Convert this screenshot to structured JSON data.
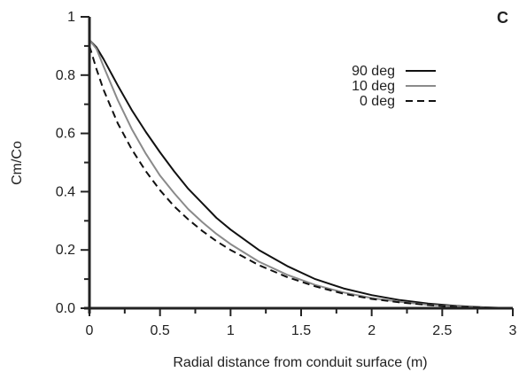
{
  "chart_data": {
    "type": "line",
    "panel_label": "C",
    "xlabel": "Radial distance from conduit surface (m)",
    "ylabel": "Cm/Co",
    "xlim": [
      0,
      3
    ],
    "ylim": [
      0,
      1
    ],
    "xticks": [
      0,
      0.5,
      1,
      1.5,
      2,
      2.5,
      3
    ],
    "xtick_labels": [
      "0",
      "0.5",
      "1",
      "1.5",
      "2",
      "2.5",
      "3"
    ],
    "yticks": [
      0,
      0.2,
      0.4,
      0.6,
      0.8,
      1
    ],
    "ytick_labels": [
      "0.0",
      "0.2",
      "0.4",
      "0.6",
      "0.8",
      "1"
    ],
    "grid": false,
    "legend": "top-right",
    "series": [
      {
        "name": "90 deg",
        "color": "#111111",
        "dash": "solid",
        "x": [
          0,
          0.05,
          0.1,
          0.2,
          0.3,
          0.4,
          0.5,
          0.6,
          0.7,
          0.8,
          0.9,
          1.0,
          1.2,
          1.4,
          1.6,
          1.8,
          2.0,
          2.2,
          2.4,
          2.6,
          2.8,
          3.0
        ],
        "y": [
          0.92,
          0.895,
          0.855,
          0.765,
          0.68,
          0.605,
          0.535,
          0.47,
          0.41,
          0.36,
          0.31,
          0.27,
          0.2,
          0.145,
          0.1,
          0.068,
          0.045,
          0.028,
          0.016,
          0.008,
          0.003,
          0
        ]
      },
      {
        "name": "10 deg",
        "color": "#8a8a8a",
        "dash": "solid",
        "x": [
          0,
          0.05,
          0.1,
          0.2,
          0.3,
          0.4,
          0.5,
          0.6,
          0.7,
          0.8,
          0.9,
          1.0,
          1.2,
          1.4,
          1.6,
          1.8,
          2.0,
          2.2,
          2.4,
          2.6,
          2.8,
          3.0
        ],
        "y": [
          0.92,
          0.89,
          0.83,
          0.715,
          0.615,
          0.53,
          0.455,
          0.395,
          0.34,
          0.295,
          0.255,
          0.22,
          0.16,
          0.115,
          0.08,
          0.054,
          0.035,
          0.022,
          0.012,
          0.006,
          0.002,
          0
        ]
      },
      {
        "name": "0 deg",
        "color": "#111111",
        "dash": "dashed",
        "x": [
          0,
          0.05,
          0.1,
          0.2,
          0.3,
          0.4,
          0.5,
          0.6,
          0.7,
          0.8,
          0.9,
          1.0,
          1.2,
          1.4,
          1.6,
          1.8,
          2.0,
          2.2,
          2.4,
          2.6,
          2.8,
          3.0
        ],
        "y": [
          0.9,
          0.82,
          0.75,
          0.635,
          0.545,
          0.47,
          0.405,
          0.35,
          0.305,
          0.265,
          0.23,
          0.2,
          0.148,
          0.107,
          0.075,
          0.05,
          0.032,
          0.02,
          0.011,
          0.005,
          0.002,
          0
        ]
      }
    ]
  }
}
